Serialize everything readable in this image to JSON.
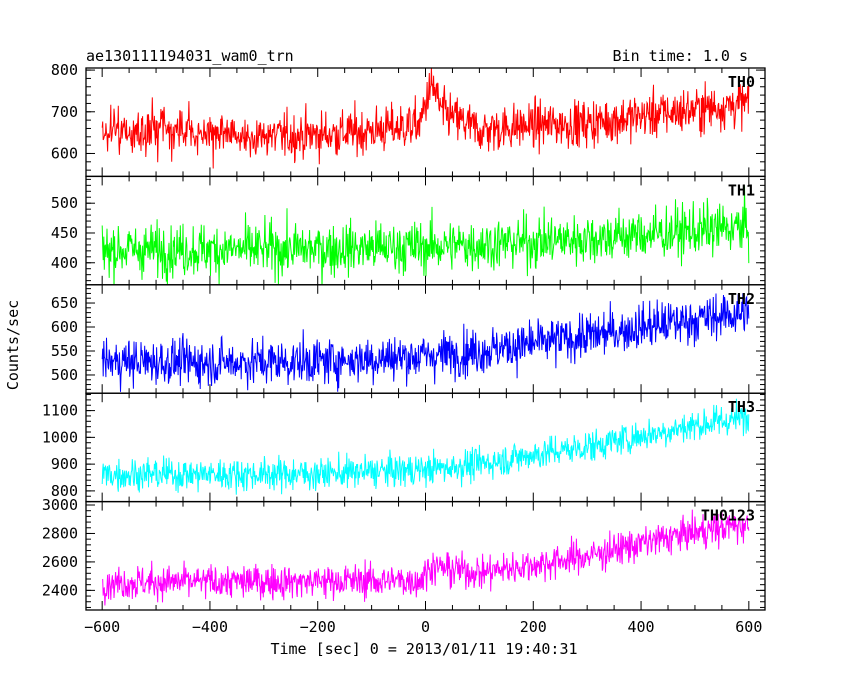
{
  "header": {
    "left_title": "ae130111194031_wam0_trn",
    "right_title": "Bin time: 1.0 s"
  },
  "axes": {
    "xlabel": "Time [sec] 0 = 2013/01/11 19:40:31",
    "ylabel": "Counts/sec"
  },
  "chart_data": {
    "type": "line",
    "title": "ae130111194031_wam0_trn",
    "subtitle": "Bin time: 1.0 s",
    "xlabel": "Time [sec] 0 = 2013/01/11 19:40:31",
    "ylabel": "Counts/sec",
    "xlim": [
      -630,
      630
    ],
    "x_ticks": [
      -600,
      -400,
      -200,
      0,
      200,
      400,
      600
    ],
    "x_tick_labels": [
      "−600",
      "−400",
      "−200",
      "0",
      "200",
      "400",
      "600"
    ],
    "grid": false,
    "bin_time_s": 1.0,
    "panels": [
      {
        "name": "TH0",
        "color": "#ff0000",
        "ylim": [
          545,
          805
        ],
        "y_ticks": [
          600,
          700,
          800
        ],
        "trend_x": [
          -600,
          -500,
          -400,
          -300,
          -200,
          -120,
          -50,
          -10,
          5,
          15,
          30,
          100,
          200,
          300,
          400,
          500,
          600
        ],
        "trend_y": [
          645,
          655,
          648,
          640,
          645,
          652,
          662,
          670,
          745,
          760,
          700,
          655,
          668,
          672,
          690,
          705,
          722
        ],
        "noise_sigma": 28
      },
      {
        "name": "TH1",
        "color": "#00ff00",
        "ylim": [
          363,
          545
        ],
        "y_ticks": [
          400,
          450,
          500
        ],
        "trend_x": [
          -600,
          -400,
          -200,
          0,
          200,
          400,
          600
        ],
        "trend_y": [
          422,
          422,
          423,
          427,
          435,
          447,
          460
        ],
        "noise_sigma": 22
      },
      {
        "name": "TH2",
        "color": "#0000ff",
        "ylim": [
          462,
          688
        ],
        "y_ticks": [
          500,
          550,
          600,
          650
        ],
        "trend_x": [
          -600,
          -400,
          -200,
          0,
          100,
          200,
          300,
          400,
          500,
          600
        ],
        "trend_y": [
          528,
          526,
          528,
          540,
          550,
          565,
          580,
          600,
          615,
          632
        ],
        "noise_sigma": 24
      },
      {
        "name": "TH3",
        "color": "#00ffff",
        "ylim": [
          760,
          1165
        ],
        "y_ticks": [
          800,
          900,
          1000,
          1100
        ],
        "trend_x": [
          -600,
          -400,
          -200,
          0,
          100,
          200,
          300,
          400,
          500,
          600
        ],
        "trend_y": [
          862,
          862,
          864,
          880,
          900,
          935,
          965,
          1005,
          1045,
          1075
        ],
        "noise_sigma": 30
      },
      {
        "name": "TH0123",
        "color": "#ff00ff",
        "ylim": [
          2262,
          3024
        ],
        "y_ticks": [
          2400,
          2600,
          2800,
          3000
        ],
        "trend_x": [
          -600,
          -400,
          -200,
          -10,
          10,
          30,
          100,
          200,
          300,
          400,
          500,
          600
        ],
        "trend_y": [
          2455,
          2460,
          2465,
          2470,
          2570,
          2555,
          2525,
          2580,
          2640,
          2730,
          2810,
          2868
        ],
        "noise_sigma": 60
      }
    ]
  }
}
